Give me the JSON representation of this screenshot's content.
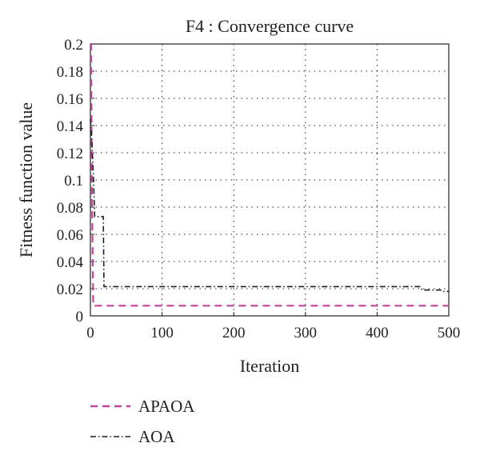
{
  "chart_data": {
    "type": "line",
    "title": "F4 : Convergence curve",
    "xlabel": "Iteration",
    "ylabel": "Fitness function value",
    "xlim": [
      0,
      500
    ],
    "ylim": [
      0,
      0.2
    ],
    "x_ticks": [
      "0",
      "100",
      "200",
      "300",
      "400",
      "500"
    ],
    "y_ticks": [
      "0",
      "0.02",
      "0.04",
      "0.06",
      "0.08",
      "0.1",
      "0.12",
      "0.14",
      "0.16",
      "0.18",
      "0.2"
    ],
    "grid": true,
    "legend_position": "below-left",
    "series": [
      {
        "name": "APAOA",
        "color": "#c0459a",
        "line_style": "dashed",
        "x": [
          0,
          1,
          2,
          3,
          4,
          5,
          500
        ],
        "y": [
          0.2,
          0.2,
          0.1,
          0.05,
          0.0075,
          0.0075,
          0.0075
        ]
      },
      {
        "name": "AOA",
        "color": "#231f20",
        "line_style": "dashdot",
        "x": [
          0,
          2,
          4,
          6,
          7,
          12,
          13,
          18,
          19,
          460,
          463,
          490,
          492,
          500
        ],
        "y": [
          0.145,
          0.13,
          0.105,
          0.073,
          0.073,
          0.073,
          0.073,
          0.073,
          0.0215,
          0.0215,
          0.019,
          0.019,
          0.018,
          0.018
        ]
      }
    ]
  }
}
